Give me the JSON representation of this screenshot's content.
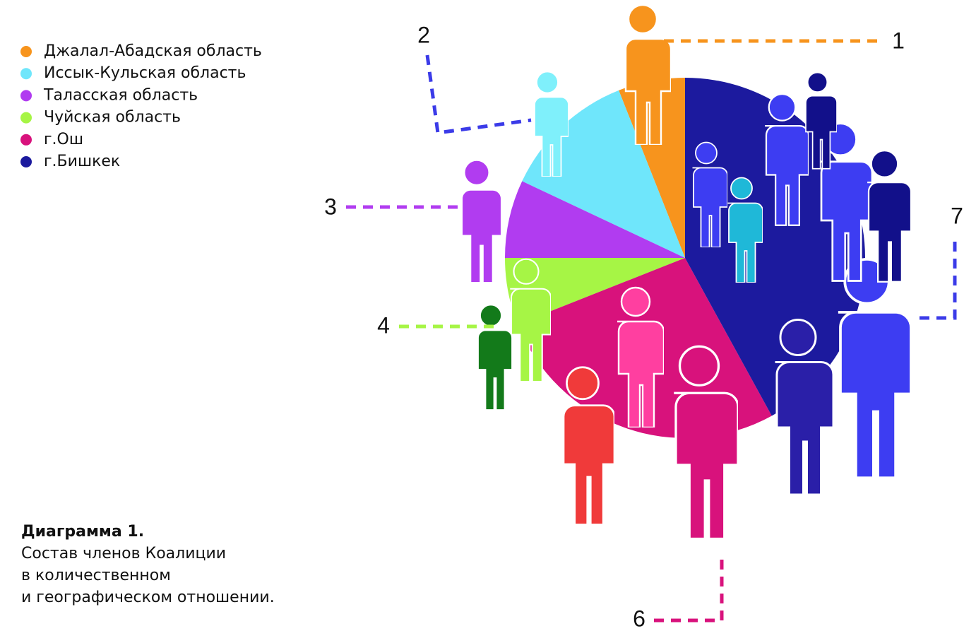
{
  "chart_data": {
    "type": "pie",
    "categories": [
      "Джалал-Абадская область",
      "Иссык-Кульская область",
      "Таласская область",
      "Чуйская область",
      "г.Ош",
      "г.Бишкек"
    ],
    "values": [
      6,
      12,
      7,
      6,
      27,
      42
    ],
    "colors": [
      "#f7941d",
      "#6fe6fb",
      "#b13cf0",
      "#a6f545",
      "#d8127c",
      "#1c1a9e"
    ],
    "callouts": [
      "1",
      "2",
      "3",
      "4",
      "6",
      "7"
    ],
    "caption": {
      "title": "Диаграмма 1.",
      "lines": [
        "Состав членов Коалиции",
        "в количественном",
        "и географическом отношении."
      ]
    }
  }
}
